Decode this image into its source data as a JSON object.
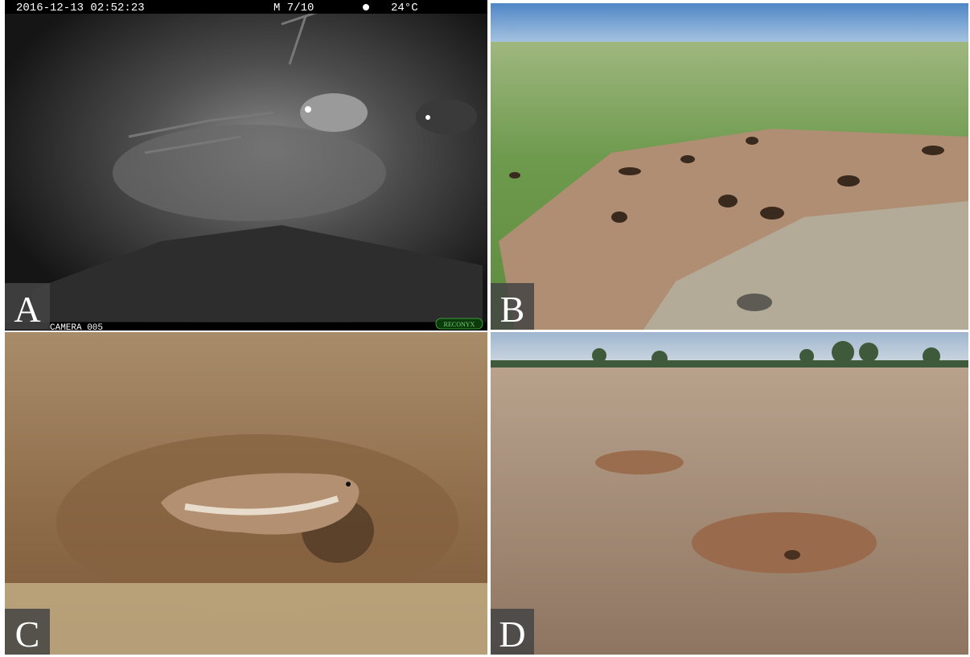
{
  "panels": [
    {
      "label": "A",
      "overlay": {
        "timestamp": "2016-12-13 02:52:23",
        "mode": "M 7/10",
        "temperature": "24°C",
        "camera": "CAMERA 005",
        "brand": "RECONYX"
      }
    },
    {
      "label": "B"
    },
    {
      "label": "C"
    },
    {
      "label": "D"
    }
  ]
}
